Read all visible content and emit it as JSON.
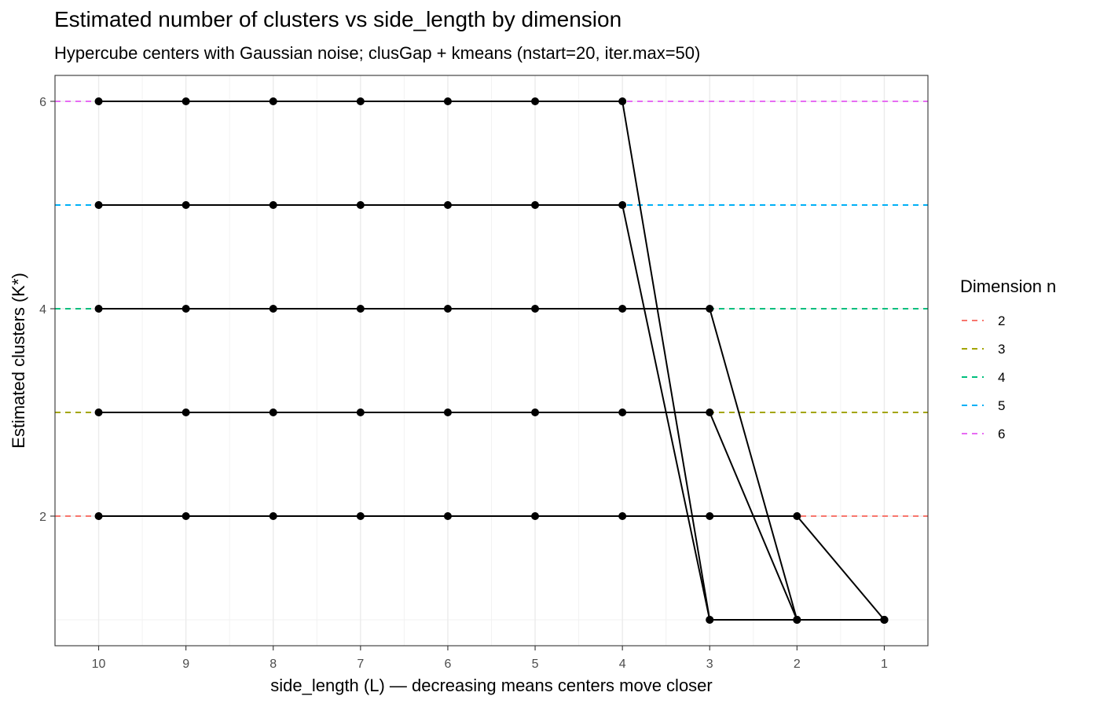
{
  "chart_data": {
    "type": "line",
    "title": "Estimated number of clusters vs side_length by dimension",
    "subtitle": "Hypercube centers with Gaussian noise; clusGap + kmeans (nstart=20, iter.max=50)",
    "xlabel": "side_length (L) — decreasing means centers move closer",
    "ylabel": "Estimated clusters (K*)",
    "x_reversed": true,
    "xlim": [
      10.5,
      0.5
    ],
    "ylim": [
      0.75,
      6.25
    ],
    "x_ticks": [
      10,
      9,
      8,
      7,
      6,
      5,
      4,
      3,
      2,
      1
    ],
    "y_ticks": [
      2,
      4,
      6
    ],
    "grid": true,
    "x": [
      10,
      9,
      8,
      7,
      6,
      5,
      4,
      3,
      2,
      1
    ],
    "series": [
      {
        "name": "2",
        "color": "#F8766D",
        "reference": 2,
        "values": [
          2,
          2,
          2,
          2,
          2,
          2,
          2,
          2,
          2,
          1
        ]
      },
      {
        "name": "3",
        "color": "#A3A500",
        "reference": 3,
        "values": [
          3,
          3,
          3,
          3,
          3,
          3,
          3,
          3,
          1,
          1
        ]
      },
      {
        "name": "4",
        "color": "#00BF7D",
        "reference": 4,
        "values": [
          4,
          4,
          4,
          4,
          4,
          4,
          4,
          4,
          1,
          1
        ]
      },
      {
        "name": "5",
        "color": "#00B0F6",
        "reference": 5,
        "values": [
          5,
          5,
          5,
          5,
          5,
          5,
          5,
          1,
          1,
          1
        ]
      },
      {
        "name": "6",
        "color": "#E76BF3",
        "reference": 6,
        "values": [
          6,
          6,
          6,
          6,
          6,
          6,
          6,
          1,
          1,
          1
        ]
      }
    ],
    "legend": {
      "title": "Dimension n",
      "position": "right"
    }
  }
}
